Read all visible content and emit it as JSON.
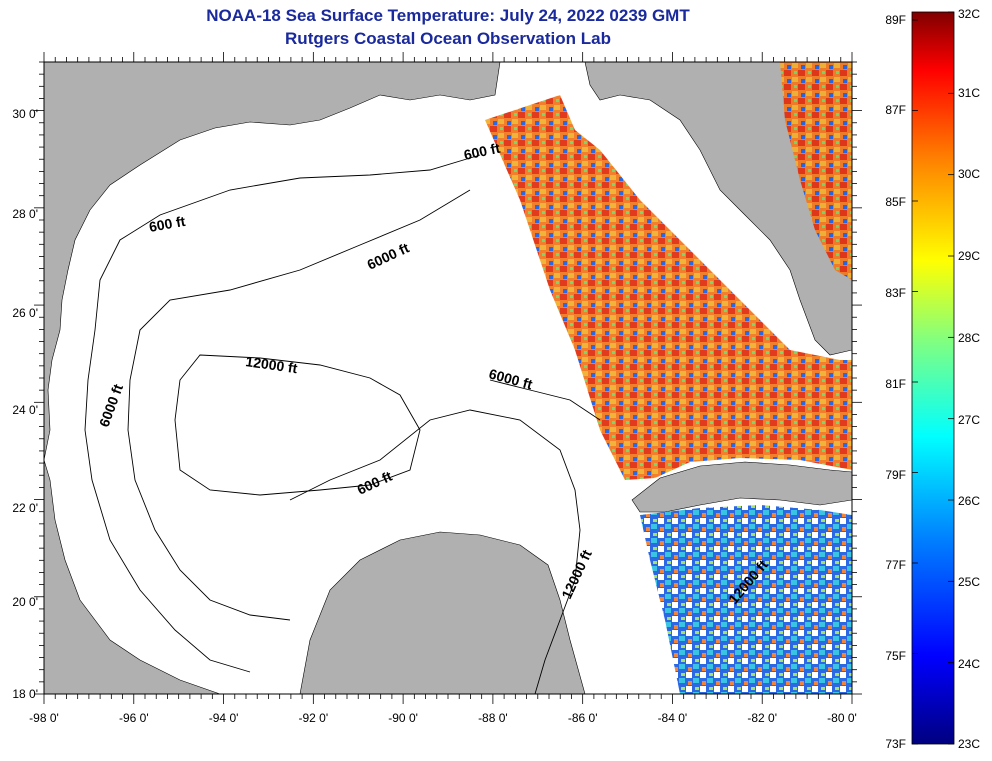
{
  "title_line1": "NOAA-18 Sea Surface Temperature:  July 24, 2022 0239 GMT",
  "title_line2": "Rutgers Coastal Ocean Observation Lab",
  "map": {
    "lon_range": [
      -98,
      -80
    ],
    "lat_range": [
      18,
      31
    ],
    "lon_ticks": [
      "-98 0'",
      "-96 0'",
      "-94 0'",
      "-92 0'",
      "-90 0'",
      "-88 0'",
      "-86 0'",
      "-84 0'",
      "-82 0'",
      "-80 0'"
    ],
    "lat_ticks": [
      "30 0'",
      "28 0'",
      "26 0'",
      "24 0'",
      "22 0'",
      "20 0'",
      "18 0'"
    ],
    "land_color": "#b0b0b0",
    "water_color": "#ffffff",
    "contour_labels": [
      "600 ft",
      "600 ft",
      "6000 ft",
      "6000 ft",
      "6000 ft",
      "12000 ft",
      "600 ft",
      "12000 ft",
      "12000 ft"
    ]
  },
  "colorbar": {
    "fahrenheit_labels": [
      "89F",
      "87F",
      "85F",
      "83F",
      "81F",
      "79F",
      "77F",
      "75F",
      "73F"
    ],
    "celsius_labels": [
      "32C",
      "31C",
      "30C",
      "29C",
      "28C",
      "27C",
      "26C",
      "25C",
      "24C",
      "23C"
    ],
    "colors": [
      "#000080",
      "#0000ff",
      "#0080ff",
      "#00ffff",
      "#80ff80",
      "#ffff00",
      "#ff8000",
      "#ff0000",
      "#800000"
    ]
  }
}
